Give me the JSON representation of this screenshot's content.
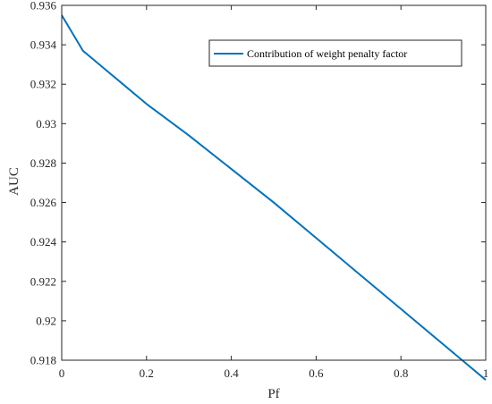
{
  "chart_data": {
    "type": "line",
    "title": "",
    "xlabel": "Pf",
    "ylabel": "AUC",
    "xlim": [
      0,
      1
    ],
    "ylim": [
      0.918,
      0.936
    ],
    "xticks": [
      0,
      0.2,
      0.4,
      0.6,
      0.8,
      1
    ],
    "xtick_labels": [
      "0",
      "0.2",
      "0.4",
      "0.6",
      "0.8",
      "1"
    ],
    "yticks": [
      0.918,
      0.92,
      0.922,
      0.924,
      0.926,
      0.928,
      0.93,
      0.932,
      0.934,
      0.936
    ],
    "ytick_labels": [
      "0.918",
      "0.92",
      "0.922",
      "0.924",
      "0.926",
      "0.928",
      "0.93",
      "0.932",
      "0.934",
      "0.936"
    ],
    "grid": false,
    "legend_position": "top-right",
    "series": [
      {
        "name": "Contribution of weight penalty factor",
        "color": "#0072BD",
        "x": [
          0,
          0.05,
          0.1,
          0.15,
          0.2,
          0.3,
          0.4,
          0.5,
          0.6,
          0.7,
          0.8,
          0.9,
          1.0
        ],
        "y": [
          0.9355,
          0.9337,
          0.9328,
          0.9319,
          0.931,
          0.9294,
          0.9277,
          0.926,
          0.9242,
          0.9224,
          0.9206,
          0.9188,
          0.917
        ]
      }
    ]
  }
}
